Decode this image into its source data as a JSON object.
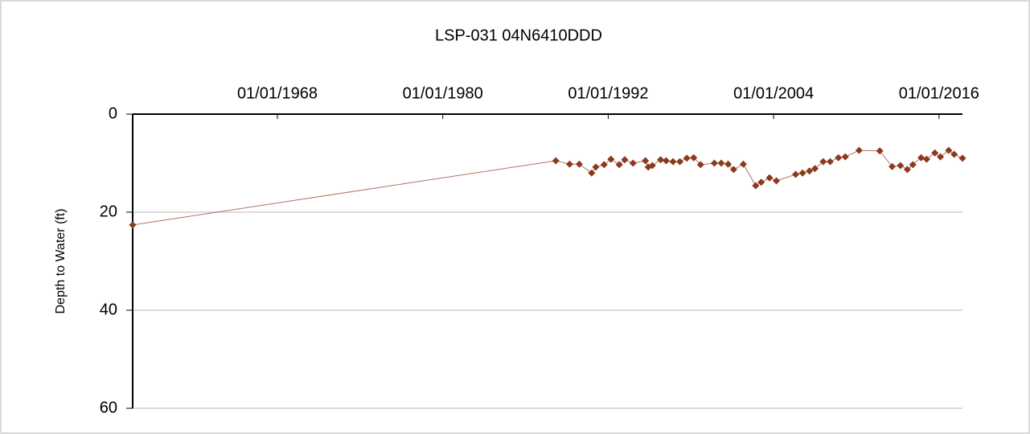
{
  "chart_data": {
    "type": "line",
    "title": "LSP-031  04N6410DDD",
    "ylabel": "Depth to Water (ft)",
    "x": [
      1957.5,
      1988.2,
      1989.2,
      1989.9,
      1990.8,
      1991.1,
      1991.7,
      1992.2,
      1992.8,
      1993.2,
      1993.8,
      1994.7,
      1994.9,
      1995.2,
      1995.8,
      1996.2,
      1996.7,
      1997.2,
      1997.7,
      1998.2,
      1998.7,
      1999.7,
      2000.2,
      2000.7,
      2001.1,
      2001.8,
      2002.7,
      2003.1,
      2003.7,
      2004.2,
      2005.6,
      2006.1,
      2006.6,
      2007.0,
      2007.6,
      2008.1,
      2008.7,
      2009.2,
      2010.2,
      2011.7,
      2012.6,
      2013.2,
      2013.7,
      2014.1,
      2014.7,
      2015.1,
      2015.7,
      2016.1,
      2016.7,
      2017.1,
      2017.7
    ],
    "series": [
      {
        "name": "Depth to Water",
        "color": "#8b3a1e",
        "values": [
          22.6,
          9.5,
          10.2,
          10.2,
          12.0,
          10.8,
          10.3,
          9.2,
          10.3,
          9.3,
          10.0,
          9.5,
          10.8,
          10.5,
          9.3,
          9.5,
          9.7,
          9.7,
          9.0,
          8.9,
          10.3,
          10.0,
          10.0,
          10.2,
          11.3,
          10.2,
          14.6,
          13.9,
          13.0,
          13.6,
          12.3,
          12.0,
          11.6,
          11.1,
          9.7,
          9.7,
          8.9,
          8.7,
          7.4,
          7.5,
          10.7,
          10.5,
          11.3,
          10.3,
          8.9,
          9.2,
          7.9,
          8.7,
          7.4,
          8.2,
          9.0
        ]
      }
    ],
    "xlim": [
      1957.5,
      2017.7
    ],
    "xticks": [
      {
        "value": 1968,
        "label": "01/01/1968"
      },
      {
        "value": 1980,
        "label": "01/01/1980"
      },
      {
        "value": 1992,
        "label": "01/01/1992"
      },
      {
        "value": 2004,
        "label": "01/01/2004"
      },
      {
        "value": 2016,
        "label": "01/01/2016"
      }
    ],
    "ylim": [
      0,
      60
    ],
    "yticks": [
      0,
      20,
      40,
      60
    ],
    "y_inverted": true,
    "grid": true
  }
}
